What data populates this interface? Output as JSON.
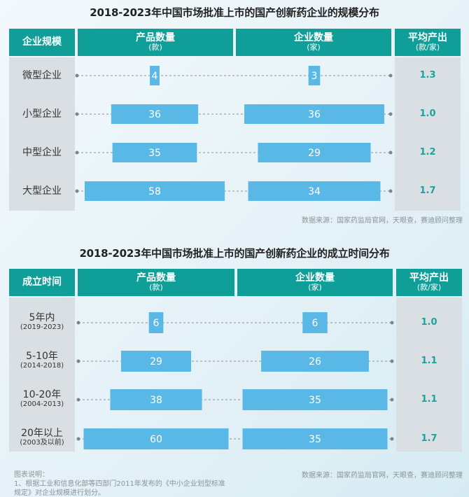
{
  "chart_data": [
    {
      "type": "bar",
      "title": "2018-2023年中国市场批准上市的国产创新药企业的规模分布",
      "header": {
        "category": "企业规模",
        "series1": "产品数量",
        "series1_unit": "(款)",
        "series2": "企业数量",
        "series2_unit": "(家)",
        "avg": "平均产出",
        "avg_unit": "(款/家)"
      },
      "categories": [
        {
          "label": "微型企业",
          "sub": ""
        },
        {
          "label": "小型企业",
          "sub": ""
        },
        {
          "label": "中型企业",
          "sub": ""
        },
        {
          "label": "大型企业",
          "sub": ""
        }
      ],
      "series": [
        {
          "name": "产品数量",
          "values": [
            4,
            36,
            35,
            58
          ]
        },
        {
          "name": "企业数量",
          "values": [
            3,
            36,
            29,
            34
          ]
        }
      ],
      "avg_values": [
        "1.3",
        "1.0",
        "1.2",
        "1.7"
      ],
      "source": "数据来源：国家药监局官网，天眼查，赛迪顾问整理"
    },
    {
      "type": "bar",
      "title": "2018-2023年中国市场批准上市的国产创新药企业的成立时间分布",
      "header": {
        "category": "成立时间",
        "series1": "产品数量",
        "series1_unit": "(款)",
        "series2": "企业数量",
        "series2_unit": "(家)",
        "avg": "平均产出",
        "avg_unit": "(款/家)"
      },
      "categories": [
        {
          "label": "5年内",
          "sub": "(2019-2023)"
        },
        {
          "label": "5-10年",
          "sub": "(2014-2018)"
        },
        {
          "label": "10-20年",
          "sub": "(2004-2013)"
        },
        {
          "label": "20年以上",
          "sub": "(2003及以前)"
        }
      ],
      "series": [
        {
          "name": "产品数量",
          "values": [
            6,
            29,
            38,
            60
          ]
        },
        {
          "name": "企业数量",
          "values": [
            6,
            26,
            35,
            35
          ]
        }
      ],
      "avg_values": [
        "1.0",
        "1.1",
        "1.1",
        "1.7"
      ],
      "source": "数据来源：国家药监局官网，天眼查，赛迪顾问整理"
    }
  ],
  "note": {
    "heading": "图表说明：",
    "line1": "1、根据工业和信息化部等四部门2011年发布的《中小企业划型标准",
    "line2": "规定》对企业规模进行划分。"
  },
  "colors": {
    "header": "#0f9e98",
    "bar": "#5ab8e6",
    "avg_text": "#1aa39c",
    "column_bg": "#d9dfe3"
  }
}
